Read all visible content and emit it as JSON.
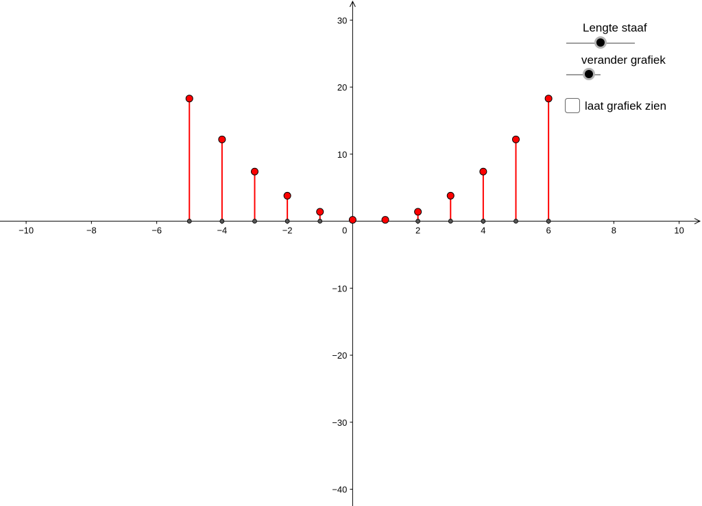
{
  "controls": {
    "slider_length": {
      "label": "Lengte staaf"
    },
    "slider_graph": {
      "label": "verander grafiek"
    },
    "checkbox_show_graph": {
      "label": "laat grafiek zien",
      "checked": false
    }
  },
  "chart_data": {
    "type": "scatter",
    "style": "stem",
    "title": "",
    "xlabel": "",
    "ylabel": "",
    "xlim": [
      -10.8,
      10.7
    ],
    "ylim": [
      -42.5,
      33
    ],
    "grid": false,
    "x_ticks": [
      -10,
      -8,
      -6,
      -4,
      -2,
      0,
      2,
      4,
      6,
      8,
      10
    ],
    "y_ticks": [
      -40,
      -30,
      -20,
      -10,
      10,
      20,
      30
    ],
    "origin_label": "0",
    "series": [
      {
        "x": [
          -5,
          -4,
          -3,
          -2,
          -1,
          0,
          1,
          2,
          3,
          4,
          5,
          6
        ],
        "y": [
          18.3,
          12.2,
          7.4,
          3.8,
          1.4,
          0.2,
          0.2,
          1.4,
          3.8,
          7.4,
          12.2,
          18.3
        ],
        "color": "#ff0000"
      }
    ]
  }
}
